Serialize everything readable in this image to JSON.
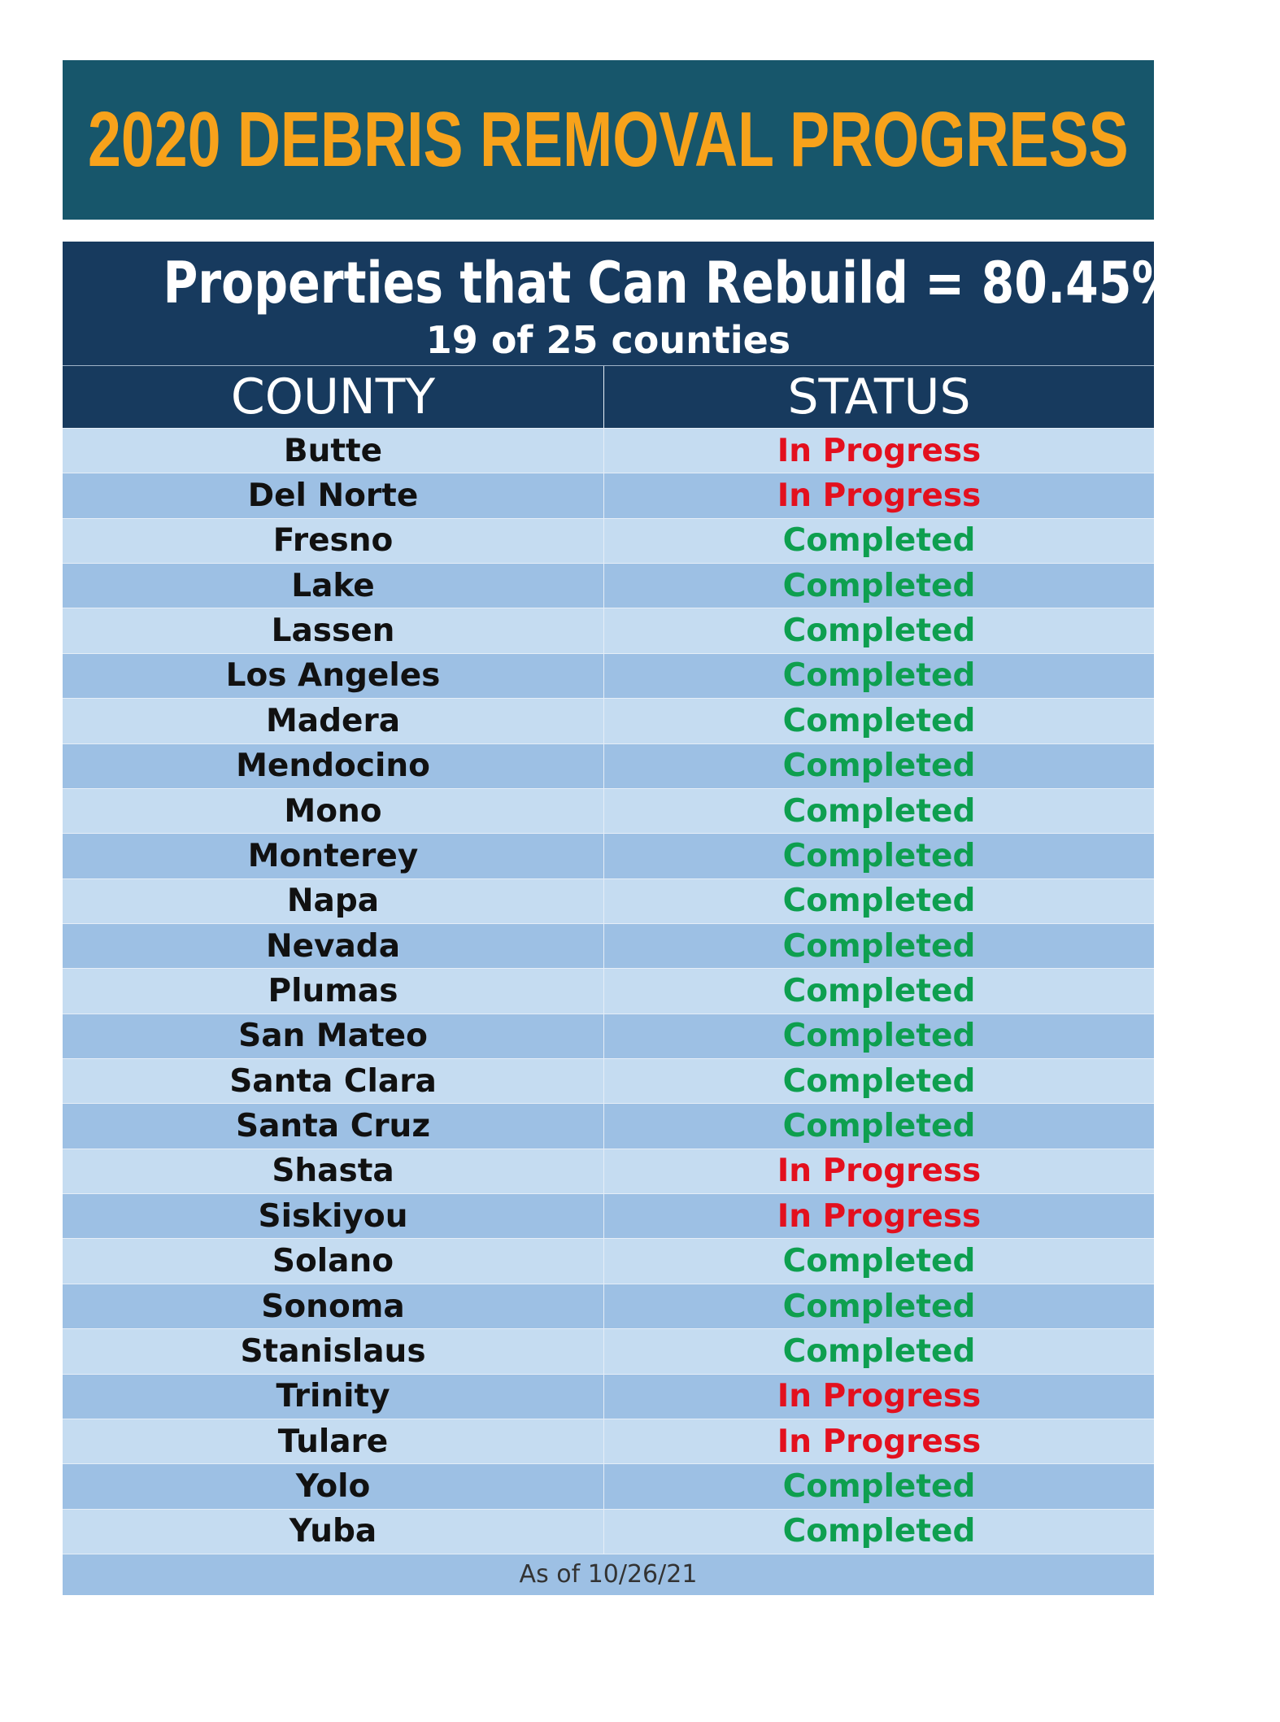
{
  "header": {
    "title": "2020 DEBRIS REMOVAL PROGRESS"
  },
  "summary": {
    "headline": "Properties that Can Rebuild = 80.45%",
    "subheadline": "19 of 25 counties"
  },
  "table": {
    "columns": [
      "COUNTY",
      "STATUS"
    ],
    "rows": [
      {
        "county": "Butte",
        "status": "In Progress",
        "color": "#e3101e"
      },
      {
        "county": "Del Norte",
        "status": "In Progress",
        "color": "#e3101e"
      },
      {
        "county": "Fresno",
        "status": "Completed",
        "color": "#0e9f4f"
      },
      {
        "county": "Lake",
        "status": "Completed",
        "color": "#0e9f4f"
      },
      {
        "county": "Lassen",
        "status": "Completed",
        "color": "#0e9f4f"
      },
      {
        "county": "Los Angeles",
        "status": "Completed",
        "color": "#0e9f4f"
      },
      {
        "county": "Madera",
        "status": "Completed",
        "color": "#0e9f4f"
      },
      {
        "county": "Mendocino",
        "status": "Completed",
        "color": "#0e9f4f"
      },
      {
        "county": "Mono",
        "status": "Completed",
        "color": "#0e9f4f"
      },
      {
        "county": "Monterey",
        "status": "Completed",
        "color": "#0e9f4f"
      },
      {
        "county": "Napa",
        "status": "Completed",
        "color": "#0e9f4f"
      },
      {
        "county": "Nevada",
        "status": "Completed",
        "color": "#0e9f4f"
      },
      {
        "county": "Plumas",
        "status": "Completed",
        "color": "#0e9f4f"
      },
      {
        "county": "San Mateo",
        "status": "Completed",
        "color": "#0e9f4f"
      },
      {
        "county": "Santa Clara",
        "status": "Completed",
        "color": "#0e9f4f"
      },
      {
        "county": "Santa Cruz",
        "status": "Completed",
        "color": "#0e9f4f"
      },
      {
        "county": "Shasta",
        "status": "In Progress",
        "color": "#e3101e"
      },
      {
        "county": "Siskiyou",
        "status": "In Progress",
        "color": "#e3101e"
      },
      {
        "county": "Solano",
        "status": "Completed",
        "color": "#0e9f4f"
      },
      {
        "county": "Sonoma",
        "status": "Completed",
        "color": "#0e9f4f"
      },
      {
        "county": "Stanislaus",
        "status": "Completed",
        "color": "#0e9f4f"
      },
      {
        "county": "Trinity",
        "status": "In Progress",
        "color": "#e3101e"
      },
      {
        "county": "Tulare",
        "status": "In Progress",
        "color": "#e3101e"
      },
      {
        "county": "Yolo",
        "status": "Completed",
        "color": "#0e9f4f"
      },
      {
        "county": "Yuba",
        "status": "Completed",
        "color": "#0e9f4f"
      }
    ]
  },
  "footer": {
    "note": "As of 10/26/21"
  }
}
